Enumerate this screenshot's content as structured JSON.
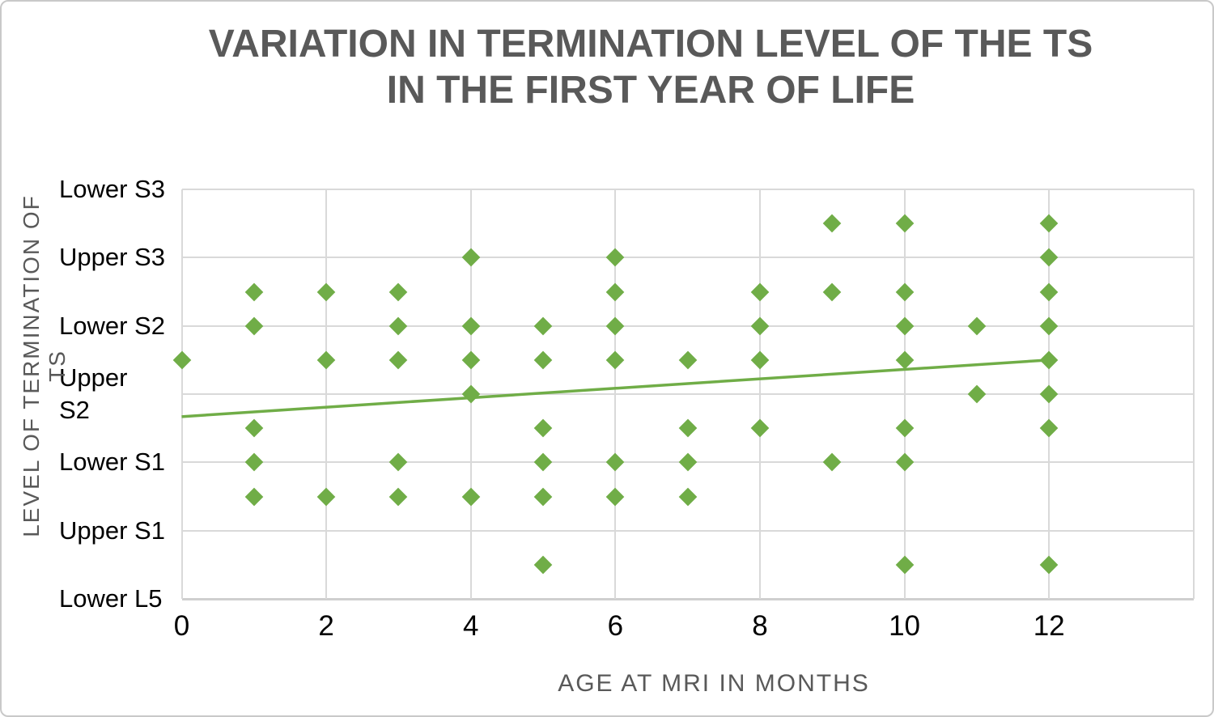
{
  "title": {
    "line1": "VARIATION IN TERMINATION LEVEL OF THE TS",
    "line2": "IN THE FIRST YEAR OF LIFE"
  },
  "colors": {
    "series_green": "#70AD47",
    "gridline_gray": "#D9D9D9",
    "axis_line_gray": "#CFCFCF",
    "title_gray": "#595959",
    "tick_label_black": "#000000",
    "frame_border_gray": "#C9C9C9"
  },
  "chart_data": {
    "type": "scatter",
    "title": "VARIATION IN TERMINATION LEVEL OF THE TS IN THE FIRST YEAR OF LIFE",
    "xlabel": "AGE AT MRI IN MONTHS",
    "ylabel": "LEVEL OF TERMINATION OF TS",
    "marker": "diamond",
    "grid": true,
    "xlim": [
      0,
      14
    ],
    "ylim": [
      1,
      7
    ],
    "x_ticks": [
      0,
      2,
      4,
      6,
      8,
      10,
      12
    ],
    "x_gridlines": [
      0,
      2,
      4,
      6,
      8,
      10,
      12,
      14
    ],
    "y_tick_values": [
      1,
      2,
      3,
      4,
      5,
      6,
      7
    ],
    "y_tick_labels": [
      "Lower L5",
      "Upper S1",
      "Lower S1",
      "Upper S2",
      "Lower S2",
      "Upper S3",
      "Lower S3"
    ],
    "wrapped_y_labels": [
      "Upper S2"
    ],
    "points": [
      {
        "x": 0,
        "y": 4.5
      },
      {
        "x": 1,
        "y": 5.5
      },
      {
        "x": 1,
        "y": 5
      },
      {
        "x": 1,
        "y": 3.5
      },
      {
        "x": 1,
        "y": 3
      },
      {
        "x": 1,
        "y": 2.5
      },
      {
        "x": 2,
        "y": 5.5
      },
      {
        "x": 2,
        "y": 4.5
      },
      {
        "x": 2,
        "y": 2.5
      },
      {
        "x": 3,
        "y": 5.5
      },
      {
        "x": 3,
        "y": 5
      },
      {
        "x": 3,
        "y": 4.5
      },
      {
        "x": 3,
        "y": 3
      },
      {
        "x": 3,
        "y": 2.5
      },
      {
        "x": 4,
        "y": 6
      },
      {
        "x": 4,
        "y": 5
      },
      {
        "x": 4,
        "y": 4.5
      },
      {
        "x": 4,
        "y": 4
      },
      {
        "x": 4,
        "y": 2.5
      },
      {
        "x": 5,
        "y": 5
      },
      {
        "x": 5,
        "y": 4.5
      },
      {
        "x": 5,
        "y": 3.5
      },
      {
        "x": 5,
        "y": 3
      },
      {
        "x": 5,
        "y": 2.5
      },
      {
        "x": 5,
        "y": 1.5
      },
      {
        "x": 6,
        "y": 6
      },
      {
        "x": 6,
        "y": 5.5
      },
      {
        "x": 6,
        "y": 5
      },
      {
        "x": 6,
        "y": 4.5
      },
      {
        "x": 6,
        "y": 3
      },
      {
        "x": 6,
        "y": 2.5
      },
      {
        "x": 7,
        "y": 4.5
      },
      {
        "x": 7,
        "y": 3.5
      },
      {
        "x": 7,
        "y": 3
      },
      {
        "x": 7,
        "y": 2.5
      },
      {
        "x": 8,
        "y": 5.5
      },
      {
        "x": 8,
        "y": 5
      },
      {
        "x": 8,
        "y": 4.5
      },
      {
        "x": 8,
        "y": 3.5
      },
      {
        "x": 9,
        "y": 6.5
      },
      {
        "x": 9,
        "y": 5.5
      },
      {
        "x": 9,
        "y": 3
      },
      {
        "x": 10,
        "y": 6.5
      },
      {
        "x": 10,
        "y": 5.5
      },
      {
        "x": 10,
        "y": 5
      },
      {
        "x": 10,
        "y": 4.5
      },
      {
        "x": 10,
        "y": 3.5
      },
      {
        "x": 10,
        "y": 3
      },
      {
        "x": 10,
        "y": 1.5
      },
      {
        "x": 11,
        "y": 5
      },
      {
        "x": 11,
        "y": 4
      },
      {
        "x": 12,
        "y": 6.5
      },
      {
        "x": 12,
        "y": 6
      },
      {
        "x": 12,
        "y": 5.5
      },
      {
        "x": 12,
        "y": 5
      },
      {
        "x": 12,
        "y": 4.5
      },
      {
        "x": 12,
        "y": 4
      },
      {
        "x": 12,
        "y": 3.5
      },
      {
        "x": 12,
        "y": 1.5
      }
    ],
    "trendline": {
      "x1": 0,
      "y1": 3.67,
      "x2": 12,
      "y2": 4.5
    }
  }
}
